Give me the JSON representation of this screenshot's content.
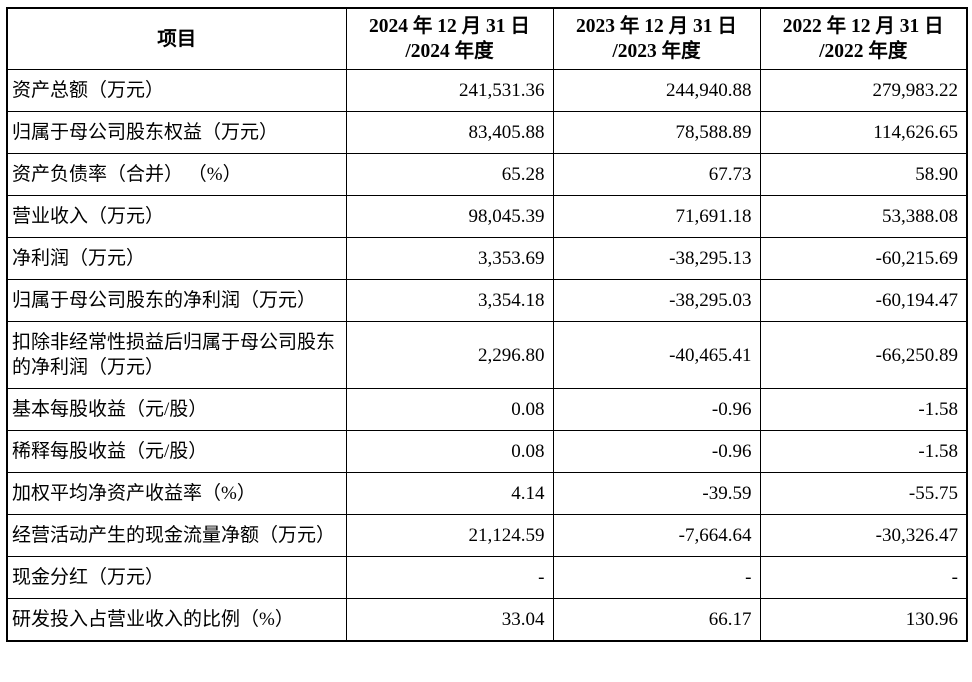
{
  "table": {
    "header": {
      "item": "项目",
      "col_2024": "2024 年 12 月 31 日\n/2024 年度",
      "col_2023": "2023 年 12 月 31 日\n/2023 年度",
      "col_2022": "2022 年 12 月 31 日\n/2022 年度"
    },
    "rows": [
      {
        "label": "资产总额（万元）",
        "values": [
          "241,531.36",
          "244,940.88",
          "279,983.22"
        ]
      },
      {
        "label": "归属于母公司股东权益（万元）",
        "values": [
          "83,405.88",
          "78,588.89",
          "114,626.65"
        ]
      },
      {
        "label": "资产负债率（合并） （%）",
        "values": [
          "65.28",
          "67.73",
          "58.90"
        ]
      },
      {
        "label": "营业收入（万元）",
        "values": [
          "98,045.39",
          "71,691.18",
          "53,388.08"
        ]
      },
      {
        "label": "净利润（万元）",
        "values": [
          "3,353.69",
          "-38,295.13",
          "-60,215.69"
        ]
      },
      {
        "label": "归属于母公司股东的净利润（万元）",
        "values": [
          "3,354.18",
          "-38,295.03",
          "-60,194.47"
        ]
      },
      {
        "label": "扣除非经常性损益后归属于母公司股东的净利润（万元）",
        "values": [
          "2,296.80",
          "-40,465.41",
          "-66,250.89"
        ]
      },
      {
        "label": "基本每股收益（元/股）",
        "values": [
          "0.08",
          "-0.96",
          "-1.58"
        ]
      },
      {
        "label": "稀释每股收益（元/股）",
        "values": [
          "0.08",
          "-0.96",
          "-1.58"
        ]
      },
      {
        "label": "加权平均净资产收益率（%）",
        "values": [
          "4.14",
          "-39.59",
          "-55.75"
        ]
      },
      {
        "label": "经营活动产生的现金流量净额（万元）",
        "values": [
          "21,124.59",
          "-7,664.64",
          "-30,326.47"
        ]
      },
      {
        "label": "现金分红（万元）",
        "values": [
          "-",
          "-",
          "-"
        ]
      },
      {
        "label": "研发投入占营业收入的比例（%）",
        "values": [
          "33.04",
          "66.17",
          "130.96"
        ]
      }
    ]
  }
}
